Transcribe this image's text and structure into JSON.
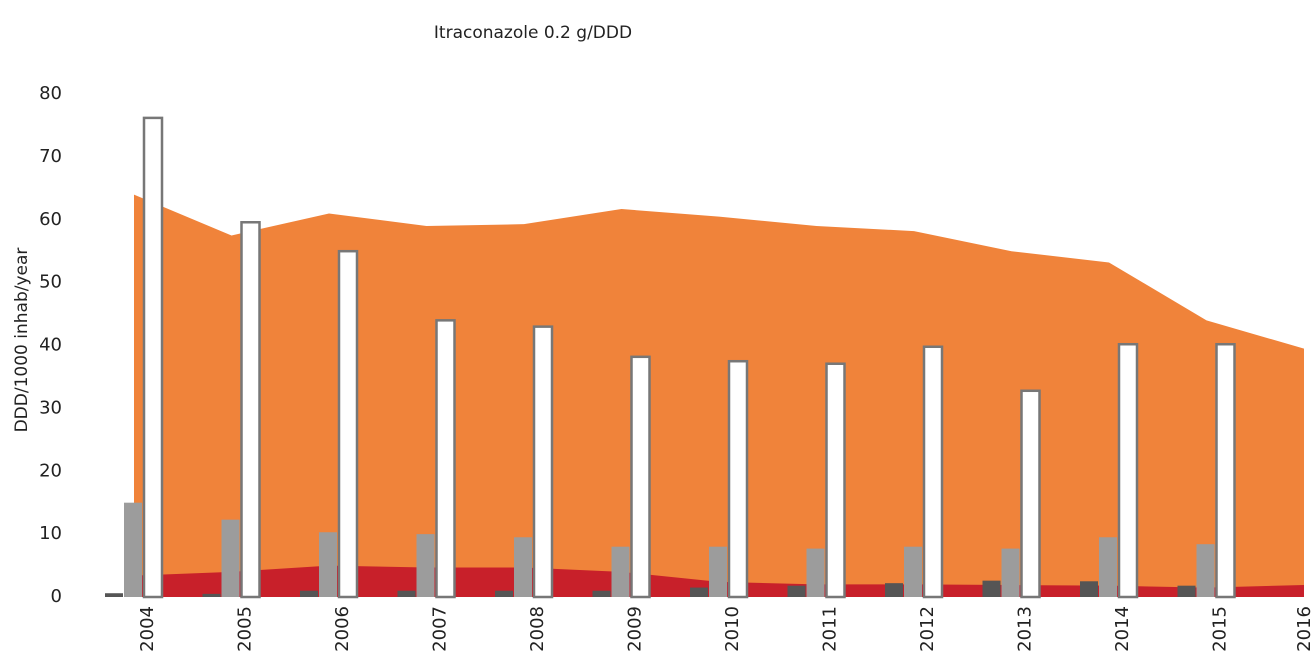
{
  "chart_data": {
    "type": "bar_area",
    "title": "Itraconazole 0.2 g/DDD",
    "y_label": "DDD/1000 inhab/year",
    "categories": [
      "2004",
      "2005",
      "2006",
      "2007",
      "2008",
      "2009",
      "2010",
      "2011",
      "2012",
      "2013",
      "2014",
      "2015",
      "2016"
    ],
    "ylim": [
      0,
      80
    ],
    "yticks": [
      0,
      10,
      20,
      30,
      40,
      50,
      60,
      70,
      80
    ],
    "areas": [
      {
        "color": "#f0833a",
        "values": [
          64,
          57.5,
          61,
          59,
          59.3,
          61.7,
          60.5,
          59,
          58.2,
          55,
          53.2,
          44,
          39.5
        ]
      },
      {
        "color": "#c8202a",
        "values": [
          3.4,
          4.0,
          5.0,
          4.7,
          4.7,
          4.0,
          2.4,
          2.0,
          2.0,
          1.9,
          1.8,
          1.5,
          1.9
        ]
      }
    ],
    "series": [
      {
        "color": "#555555",
        "values": [
          0.6,
          0.5,
          1.0,
          1.0,
          1.0,
          1.0,
          1.5,
          1.8,
          2.2,
          2.6,
          2.5,
          1.8,
          null
        ]
      },
      {
        "color": "#9c9c9c",
        "values": [
          15,
          12.3,
          10.3,
          10,
          9.5,
          8,
          8,
          7.7,
          8,
          7.7,
          9.5,
          8.4,
          null
        ]
      },
      {
        "color": "#ffffff",
        "stroke": "#777777",
        "values": [
          76.2,
          59.6,
          55,
          44,
          43,
          38.2,
          37.5,
          37.1,
          39.8,
          32.8,
          40.2,
          40.2,
          null
        ]
      }
    ]
  }
}
